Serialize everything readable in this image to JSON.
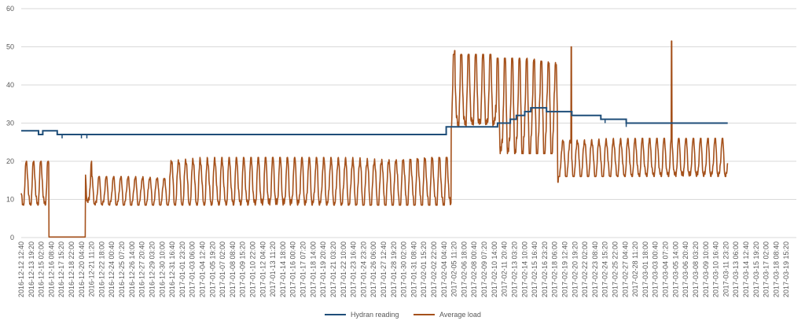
{
  "chart_data": {
    "type": "line",
    "title": "",
    "xlabel": "",
    "ylabel": "",
    "ylim": [
      0,
      60
    ],
    "yticks": [
      0,
      10,
      20,
      30,
      40,
      50,
      60
    ],
    "grid": true,
    "legend_position": "bottom",
    "x_tick_labels": [
      "2016-12-12 12:40",
      "2016-12-13 19:20",
      "2016-12-15 02:00",
      "2016-12-16 08:40",
      "2016-12-17 15:20",
      "2016-12-18 22:00",
      "2016-12-20 04:40",
      "2016-12-21 11:20",
      "2016-12-22 18:00",
      "2016-12-24 00:40",
      "2016-12-25 07:20",
      "2016-12-26 14:00",
      "2016-12-27 20:40",
      "2016-12-29 03:20",
      "2016-12-30 10:00",
      "2016-12-31 16:40",
      "2017-01-01 23:20",
      "2017-01-03 06:00",
      "2017-01-04 12:40",
      "2017-01-05 19:20",
      "2017-01-07 02:00",
      "2017-01-08 08:40",
      "2017-01-09 15:20",
      "2017-01-10 22:00",
      "2017-01-12 04:40",
      "2017-01-13 11:20",
      "2017-01-14 18:00",
      "2017-01-16 00:40",
      "2017-01-17 07:20",
      "2017-01-18 14:00",
      "2017-01-19 20:40",
      "2017-01-21 03:20",
      "2017-01-22 10:00",
      "2017-01-23 16:40",
      "2017-01-24 23:20",
      "2017-01-26 06:00",
      "2017-01-27 12:40",
      "2017-01-28 19:20",
      "2017-01-30 02:00",
      "2017-01-31 08:40",
      "2017-02-01 15:20",
      "2017-02-02 22:00",
      "2017-02-04 04:40",
      "2017-02-05 11:20",
      "2017-02-06 18:00",
      "2017-02-08 00:40",
      "2017-02-09 07:20",
      "2017-02-10 14:00",
      "2017-02-11 20:40",
      "2017-02-13 03:20",
      "2017-02-14 10:00",
      "2017-02-15 16:40",
      "2017-02-16 23:20",
      "2017-02-18 06:00",
      "2017-02-19 12:40",
      "2017-02-20 19:20",
      "2017-02-22 02:00",
      "2017-02-23 08:40",
      "2017-02-24 15:20",
      "2017-02-25 22:00",
      "2017-02-27 04:40",
      "2017-02-28 11:20",
      "2017-03-01 18:00",
      "2017-03-03 00:40",
      "2017-03-04 07:20",
      "2017-03-05 14:00",
      "2017-03-06 20:40",
      "2017-03-08 03:20",
      "2017-03-09 10:00",
      "2017-03-10 16:40",
      "2017-03-11 23:20",
      "2017-03-13 06:00",
      "2017-03-14 12:40",
      "2017-03-15 19:20",
      "2017-03-17 02:00",
      "2017-03-18 08:40",
      "2017-03-19 15:20"
    ],
    "series": [
      {
        "name": "Hydran reading",
        "color": "#1f4e79",
        "steps": [
          [
            "2016-12-12 12:40",
            28
          ],
          [
            "2016-12-14 22:00",
            27
          ],
          [
            "2016-12-15 12:00",
            28
          ],
          [
            "2016-12-17 12:00",
            27
          ],
          [
            "2017-02-09 04:00",
            29
          ],
          [
            "2017-02-16 06:00",
            30
          ],
          [
            "2017-02-18 00:00",
            31
          ],
          [
            "2017-02-18 20:00",
            32
          ],
          [
            "2017-02-20 00:00",
            33
          ],
          [
            "2017-02-20 20:00",
            34
          ],
          [
            "2017-02-23 00:00",
            33
          ],
          [
            "2017-02-26 12:00",
            32
          ],
          [
            "2017-03-02 12:00",
            31
          ],
          [
            "2017-03-06 00:00",
            30
          ],
          [
            "2017-03-20 00:00",
            30
          ]
        ],
        "dips": [
          [
            "2016-12-18 04:00",
            26
          ],
          [
            "2016-12-20 20:00",
            26
          ],
          [
            "2016-12-21 14:00",
            26
          ],
          [
            "2016-12-31 09:00",
            27
          ],
          [
            "2017-03-03 02:00",
            30
          ],
          [
            "2017-03-06 00:00",
            29
          ]
        ]
      },
      {
        "name": "Average load",
        "color": "#a5511b",
        "segments": [
          {
            "start": "2016-12-12 12:40",
            "end": "2016-12-16 08:40",
            "min": 8.5,
            "max": 20
          },
          {
            "start": "2016-12-16 08:40",
            "end": "2016-12-21 09:00",
            "min": 0,
            "max": 0.3
          },
          {
            "start": "2016-12-21 09:00",
            "end": "2016-12-22 06:00",
            "min": 9,
            "max": 20
          },
          {
            "start": "2016-12-22 06:00",
            "end": "2017-01-02 00:00",
            "min": 8.5,
            "max": 16
          },
          {
            "start": "2017-01-02 00:00",
            "end": "2017-02-09 20:00",
            "min": 8.5,
            "max": 21
          },
          {
            "start": "2017-02-09 20:00",
            "end": "2017-02-16 00:00",
            "min": 29,
            "max": 48
          },
          {
            "start": "2017-02-16 00:00",
            "end": "2017-02-24 12:00",
            "min": 22,
            "max": 47
          },
          {
            "start": "2017-02-24 12:00",
            "end": "2017-03-20 00:00",
            "min": 16,
            "max": 26
          }
        ],
        "spikes": [
          [
            "2017-02-10 08:00",
            49
          ],
          [
            "2017-02-24 14:00",
            14.5
          ],
          [
            "2017-02-26 10:00",
            50
          ],
          [
            "2017-03-12 06:00",
            51.5
          ]
        ]
      }
    ]
  }
}
